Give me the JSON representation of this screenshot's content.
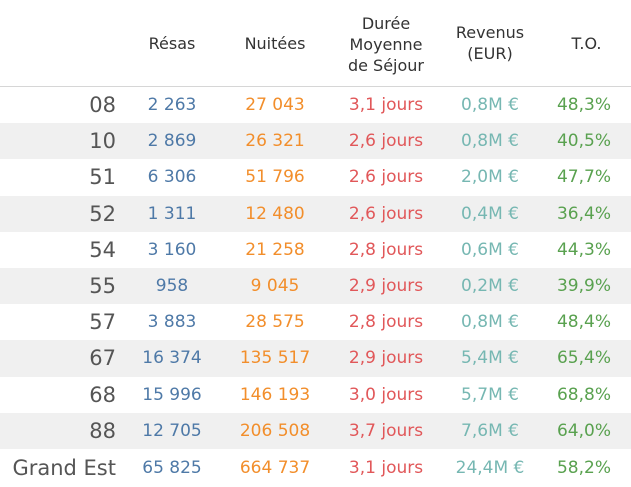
{
  "chart_data": {
    "type": "table",
    "columns": [
      "",
      "Résas",
      "Nuitées",
      "Durée Moyenne de Séjour",
      "Revenus (EUR)",
      "T.O."
    ],
    "header_lines": {
      "resas": [
        "Résas"
      ],
      "nuitees": [
        "Nuitées"
      ],
      "duree": [
        "Durée",
        "Moyenne",
        "de Séjour"
      ],
      "revenus": [
        "Revenus",
        "(EUR)"
      ],
      "to": [
        "T.O."
      ]
    },
    "rows": [
      {
        "label": "08",
        "resas": "2 263",
        "nuitees": "27 043",
        "duree": "3,1 jours",
        "revenus": "0,8M €",
        "to": "48,3%"
      },
      {
        "label": "10",
        "resas": "2 869",
        "nuitees": "26 321",
        "duree": "2,6 jours",
        "revenus": "0,8M €",
        "to": "40,5%"
      },
      {
        "label": "51",
        "resas": "6 306",
        "nuitees": "51 796",
        "duree": "2,6 jours",
        "revenus": "2,0M €",
        "to": "47,7%"
      },
      {
        "label": "52",
        "resas": "1 311",
        "nuitees": "12 480",
        "duree": "2,6 jours",
        "revenus": "0,4M €",
        "to": "36,4%"
      },
      {
        "label": "54",
        "resas": "3 160",
        "nuitees": "21 258",
        "duree": "2,8 jours",
        "revenus": "0,6M €",
        "to": "44,3%"
      },
      {
        "label": "55",
        "resas": "958",
        "nuitees": "9 045",
        "duree": "2,9 jours",
        "revenus": "0,2M €",
        "to": "39,9%"
      },
      {
        "label": "57",
        "resas": "3 883",
        "nuitees": "28 575",
        "duree": "2,8 jours",
        "revenus": "0,8M €",
        "to": "48,4%"
      },
      {
        "label": "67",
        "resas": "16 374",
        "nuitees": "135 517",
        "duree": "2,9 jours",
        "revenus": "5,4M €",
        "to": "65,4%"
      },
      {
        "label": "68",
        "resas": "15 996",
        "nuitees": "146 193",
        "duree": "3,0 jours",
        "revenus": "5,7M €",
        "to": "68,8%"
      },
      {
        "label": "88",
        "resas": "12 705",
        "nuitees": "206 508",
        "duree": "3,7 jours",
        "revenus": "7,6M €",
        "to": "64,0%"
      },
      {
        "label": "Grand Est",
        "resas": "65 825",
        "nuitees": "664 737",
        "duree": "3,1 jours",
        "revenus": "24,4M €",
        "to": "58,2%"
      }
    ],
    "colors": {
      "resas": "#4e79a7",
      "nuitees": "#f28e2b",
      "duree": "#e15759",
      "revenus": "#76b7b2",
      "to": "#59a14f",
      "band": "#f0f0f0"
    }
  }
}
